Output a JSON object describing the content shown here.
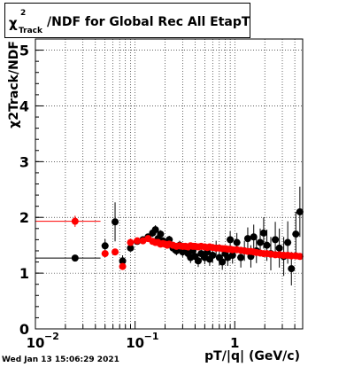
{
  "title": {
    "symbol": "χ",
    "superscript": "2",
    "subscript": "Track",
    "text": "/NDF for Global Rec All EtapT"
  },
  "timestamp": "Wed Jan 13 15:06:29 2021",
  "chart_data": {
    "type": "scatter",
    "xlabel": "pT/|q| (GeV/c)",
    "ylabel": "χ2Track/NDF",
    "xlog": true,
    "xlim": [
      0.01,
      4.8
    ],
    "ylim": [
      0,
      5.2
    ],
    "grid": true,
    "x_ticks": [
      {
        "v": 0.01,
        "base": "10",
        "exp": "−2"
      },
      {
        "v": 0.1,
        "base": "10",
        "exp": "−1"
      },
      {
        "v": 1,
        "base": "1",
        "exp": ""
      }
    ],
    "y_ticks": [
      0,
      1,
      2,
      3,
      4,
      5
    ],
    "series": [
      {
        "color": "#000000",
        "points": [
          [
            0.025,
            1.27,
            0.03
          ],
          [
            0.05,
            1.49,
            0.12
          ],
          [
            0.063,
            1.92,
            0.35
          ],
          [
            0.075,
            1.22,
            0.1
          ],
          [
            0.09,
            1.45,
            0.06
          ],
          [
            0.105,
            1.57,
            0.05
          ],
          [
            0.12,
            1.6,
            0.05
          ],
          [
            0.135,
            1.65,
            0.06
          ],
          [
            0.15,
            1.72,
            0.07
          ],
          [
            0.16,
            1.78,
            0.08
          ],
          [
            0.17,
            1.62,
            0.06
          ],
          [
            0.18,
            1.7,
            0.07
          ],
          [
            0.19,
            1.58,
            0.06
          ],
          [
            0.2,
            1.55,
            0.06
          ],
          [
            0.21,
            1.52,
            0.07
          ],
          [
            0.22,
            1.6,
            0.07
          ],
          [
            0.24,
            1.45,
            0.08
          ],
          [
            0.26,
            1.4,
            0.08
          ],
          [
            0.28,
            1.5,
            0.08
          ],
          [
            0.3,
            1.38,
            0.09
          ],
          [
            0.32,
            1.45,
            0.09
          ],
          [
            0.34,
            1.35,
            0.1
          ],
          [
            0.36,
            1.28,
            0.1
          ],
          [
            0.38,
            1.4,
            0.1
          ],
          [
            0.4,
            1.3,
            0.1
          ],
          [
            0.43,
            1.22,
            0.11
          ],
          [
            0.46,
            1.35,
            0.11
          ],
          [
            0.5,
            1.28,
            0.12
          ],
          [
            0.53,
            1.38,
            0.12
          ],
          [
            0.56,
            1.25,
            0.12
          ],
          [
            0.6,
            1.32,
            0.13
          ],
          [
            0.65,
            1.45,
            0.13
          ],
          [
            0.7,
            1.28,
            0.14
          ],
          [
            0.75,
            1.2,
            0.14
          ],
          [
            0.8,
            1.35,
            0.14
          ],
          [
            0.85,
            1.28,
            0.15
          ],
          [
            0.9,
            1.6,
            0.15
          ],
          [
            0.95,
            1.32,
            0.15
          ],
          [
            1.05,
            1.55,
            0.17
          ],
          [
            1.15,
            1.28,
            0.18
          ],
          [
            1.25,
            1.4,
            0.18
          ],
          [
            1.35,
            1.62,
            0.2
          ],
          [
            1.45,
            1.3,
            0.2
          ],
          [
            1.55,
            1.65,
            0.22
          ],
          [
            1.65,
            1.4,
            0.22
          ],
          [
            1.8,
            1.55,
            0.25
          ],
          [
            1.95,
            1.72,
            0.28
          ],
          [
            2.1,
            1.5,
            0.28
          ],
          [
            2.3,
            1.35,
            0.3
          ],
          [
            2.55,
            1.6,
            0.32
          ],
          [
            2.8,
            1.45,
            0.35
          ],
          [
            3.1,
            1.3,
            0.35
          ],
          [
            3.4,
            1.55,
            0.38
          ],
          [
            3.7,
            1.08,
            0.3
          ],
          [
            4.1,
            1.7,
            0.4
          ],
          [
            4.5,
            2.1,
            0.45
          ]
        ]
      },
      {
        "color": "#ff0000",
        "points": [
          [
            0.025,
            1.93,
            0.1
          ],
          [
            0.05,
            1.35,
            0.04
          ],
          [
            0.063,
            1.38,
            0.04
          ],
          [
            0.075,
            1.12,
            0.04
          ],
          [
            0.09,
            1.55,
            0.03
          ],
          [
            0.105,
            1.58,
            0.03
          ],
          [
            0.12,
            1.58,
            0.03
          ],
          [
            0.135,
            1.62,
            0.03
          ],
          [
            0.15,
            1.57,
            0.03
          ],
          [
            0.16,
            1.55,
            0.03
          ],
          [
            0.17,
            1.55,
            0.03
          ],
          [
            0.18,
            1.52,
            0.03
          ],
          [
            0.19,
            1.53,
            0.03
          ],
          [
            0.2,
            1.52,
            0.03
          ],
          [
            0.21,
            1.5,
            0.03
          ],
          [
            0.22,
            1.52,
            0.03
          ],
          [
            0.24,
            1.5,
            0.03
          ],
          [
            0.26,
            1.48,
            0.03
          ],
          [
            0.28,
            1.49,
            0.03
          ],
          [
            0.3,
            1.48,
            0.03
          ],
          [
            0.32,
            1.48,
            0.03
          ],
          [
            0.34,
            1.47,
            0.03
          ],
          [
            0.36,
            1.49,
            0.03
          ],
          [
            0.38,
            1.48,
            0.03
          ],
          [
            0.4,
            1.48,
            0.03
          ],
          [
            0.43,
            1.47,
            0.03
          ],
          [
            0.46,
            1.48,
            0.03
          ],
          [
            0.5,
            1.47,
            0.03
          ],
          [
            0.53,
            1.46,
            0.03
          ],
          [
            0.56,
            1.47,
            0.03
          ],
          [
            0.6,
            1.46,
            0.03
          ],
          [
            0.65,
            1.45,
            0.03
          ],
          [
            0.7,
            1.45,
            0.03
          ],
          [
            0.75,
            1.44,
            0.03
          ],
          [
            0.8,
            1.44,
            0.03
          ],
          [
            0.85,
            1.43,
            0.03
          ],
          [
            0.9,
            1.43,
            0.03
          ],
          [
            0.95,
            1.42,
            0.03
          ],
          [
            1.05,
            1.42,
            0.03
          ],
          [
            1.15,
            1.41,
            0.03
          ],
          [
            1.25,
            1.4,
            0.03
          ],
          [
            1.35,
            1.39,
            0.03
          ],
          [
            1.45,
            1.39,
            0.03
          ],
          [
            1.55,
            1.38,
            0.03
          ],
          [
            1.65,
            1.37,
            0.03
          ],
          [
            1.8,
            1.36,
            0.03
          ],
          [
            1.95,
            1.35,
            0.03
          ],
          [
            2.1,
            1.35,
            0.03
          ],
          [
            2.3,
            1.34,
            0.03
          ],
          [
            2.55,
            1.33,
            0.03
          ],
          [
            2.8,
            1.33,
            0.03
          ],
          [
            3.1,
            1.32,
            0.03
          ],
          [
            3.4,
            1.32,
            0.03
          ],
          [
            3.7,
            1.31,
            0.03
          ],
          [
            4.1,
            1.31,
            0.03
          ],
          [
            4.5,
            1.3,
            0.03
          ]
        ]
      }
    ]
  }
}
